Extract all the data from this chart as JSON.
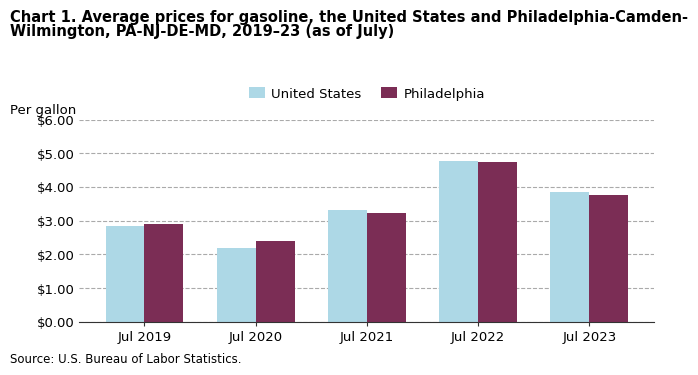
{
  "title_line1": "Chart 1. Average prices for gasoline, the United States and Philadelphia-Camden-",
  "title_line2": "Wilmington, PA-NJ-DE-MD, 2019–23 (as of July)",
  "ylabel": "Per gallon",
  "source": "Source: U.S. Bureau of Labor Statistics.",
  "categories": [
    "Jul 2019",
    "Jul 2020",
    "Jul 2021",
    "Jul 2022",
    "Jul 2023"
  ],
  "us_values": [
    2.84,
    2.18,
    3.3,
    4.77,
    3.85
  ],
  "philly_values": [
    2.9,
    2.38,
    3.24,
    4.75,
    3.76
  ],
  "us_color": "#add8e6",
  "philly_color": "#7B2D55",
  "us_label": "United States",
  "philly_label": "Philadelphia",
  "ylim": [
    0,
    6.0
  ],
  "yticks": [
    0.0,
    1.0,
    2.0,
    3.0,
    4.0,
    5.0,
    6.0
  ],
  "bar_width": 0.35,
  "background_color": "#ffffff",
  "grid_color": "#aaaaaa",
  "title_fontsize": 10.5,
  "axis_fontsize": 9.5,
  "legend_fontsize": 9.5,
  "source_fontsize": 8.5
}
